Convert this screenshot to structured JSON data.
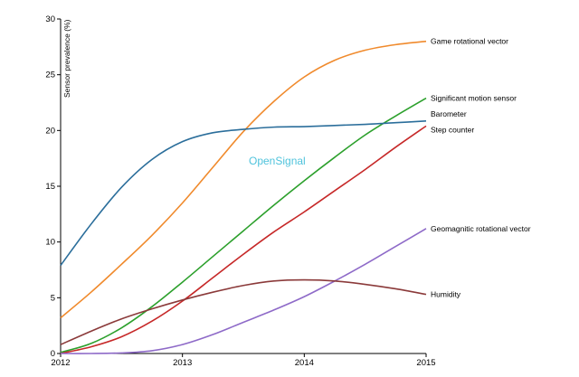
{
  "watermark": "OpenSignal",
  "chart_data": {
    "type": "line",
    "ylabel": "Sensor prevalence (%)",
    "xlabel": "",
    "xlim": [
      2012,
      2015
    ],
    "ylim": [
      0,
      30
    ],
    "xticks": [
      "2012",
      "2013",
      "2014",
      "2015"
    ],
    "yticks": [
      "0",
      "5",
      "10",
      "15",
      "20",
      "25",
      "30"
    ],
    "legend": "inline labels at line ends",
    "grid": false,
    "series": [
      {
        "name": "Game rotational vector",
        "color": "#f08a2c",
        "x": [
          2012,
          2012.25,
          2012.5,
          2012.75,
          2013,
          2013.25,
          2013.5,
          2013.75,
          2014,
          2014.25,
          2014.5,
          2014.75,
          2015
        ],
        "y": [
          3.2,
          5.5,
          8.0,
          10.6,
          13.5,
          16.7,
          19.9,
          22.6,
          24.8,
          26.3,
          27.2,
          27.7,
          28.0
        ]
      },
      {
        "name": "Significant motion sensor",
        "color": "#2ca02c",
        "x": [
          2012,
          2012.25,
          2012.5,
          2012.75,
          2013,
          2013.25,
          2013.5,
          2013.75,
          2014,
          2014.25,
          2014.5,
          2014.75,
          2015
        ],
        "y": [
          0.1,
          0.9,
          2.3,
          4.2,
          6.4,
          8.7,
          11.0,
          13.3,
          15.5,
          17.6,
          19.6,
          21.3,
          22.9
        ]
      },
      {
        "name": "Barometer",
        "color": "#2b6e9b",
        "x": [
          2012,
          2012.25,
          2012.5,
          2012.75,
          2013,
          2013.25,
          2013.5,
          2013.75,
          2014,
          2014.25,
          2014.5,
          2014.75,
          2015
        ],
        "y": [
          7.9,
          11.6,
          14.9,
          17.4,
          19.0,
          19.8,
          20.1,
          20.3,
          20.35,
          20.45,
          20.55,
          20.7,
          20.85
        ]
      },
      {
        "name": "Step counter",
        "color": "#c62828",
        "x": [
          2012,
          2012.25,
          2012.5,
          2012.75,
          2013,
          2013.25,
          2013.5,
          2013.75,
          2014,
          2014.25,
          2014.5,
          2014.75,
          2015
        ],
        "y": [
          0.0,
          0.6,
          1.5,
          2.9,
          4.7,
          6.8,
          8.9,
          10.9,
          12.7,
          14.6,
          16.5,
          18.5,
          20.4
        ]
      },
      {
        "name": "Geomagnitic rotational vector",
        "color": "#8e6ac8",
        "x": [
          2012,
          2012.25,
          2012.5,
          2012.75,
          2013,
          2013.25,
          2013.5,
          2013.75,
          2014,
          2014.25,
          2014.5,
          2014.75,
          2015
        ],
        "y": [
          0.0,
          0.0,
          0.05,
          0.25,
          0.8,
          1.7,
          2.8,
          3.9,
          5.1,
          6.5,
          8.0,
          9.6,
          11.2
        ]
      },
      {
        "name": "Humidity",
        "color": "#8b3a3a",
        "x": [
          2012,
          2012.25,
          2012.5,
          2012.75,
          2013,
          2013.25,
          2013.5,
          2013.75,
          2014,
          2014.25,
          2014.5,
          2014.75,
          2015
        ],
        "y": [
          0.8,
          2.0,
          3.1,
          4.0,
          4.8,
          5.5,
          6.1,
          6.5,
          6.6,
          6.5,
          6.2,
          5.8,
          5.3
        ]
      }
    ]
  }
}
